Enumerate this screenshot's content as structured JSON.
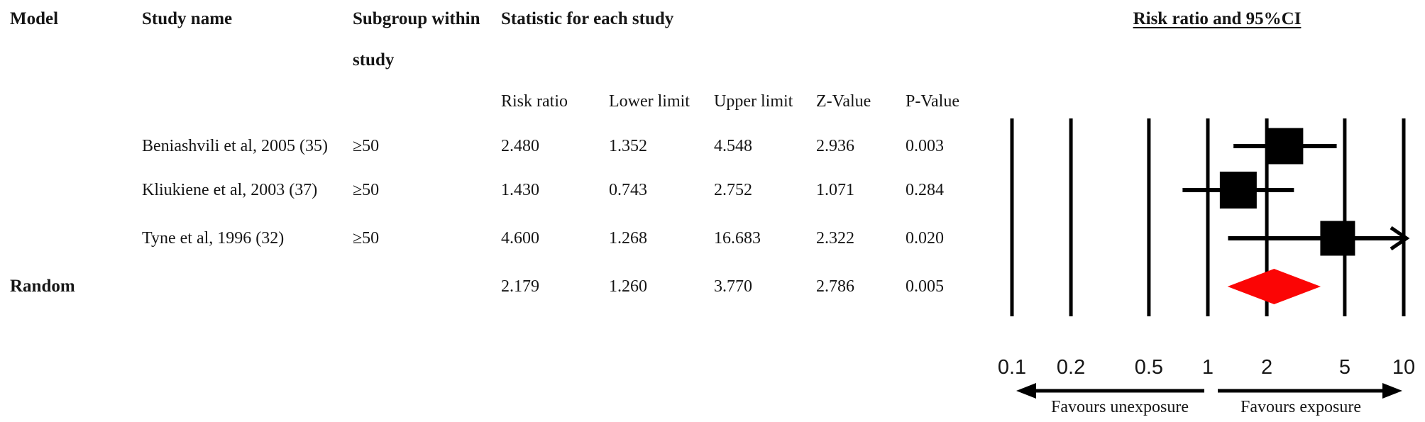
{
  "table": {
    "headers": {
      "model": "Model",
      "study_name": "Study name",
      "subgroup_line1": "Subgroup within",
      "subgroup_line2": "study",
      "statistic": "Statistic for each study",
      "risk_ratio": "Risk ratio",
      "lower_limit": "Lower limit",
      "upper_limit": "Upper limit",
      "z_value": "Z-Value",
      "p_value": "P-Value"
    },
    "rows": [
      {
        "study": "Beniashvili et al, 2005 (35)",
        "subgroup": "≥50",
        "risk_ratio": "2.480",
        "lower_limit": "1.352",
        "upper_limit": "4.548",
        "z_value": "2.936",
        "p_value": "0.003"
      },
      {
        "study": "Kliukiene et al, 2003 (37)",
        "subgroup": "≥50",
        "risk_ratio": "1.430",
        "lower_limit": "0.743",
        "upper_limit": "2.752",
        "z_value": "1.071",
        "p_value": "0.284"
      },
      {
        "study": "Tyne et al, 1996 (32)",
        "subgroup": "≥50",
        "risk_ratio": "4.600",
        "lower_limit": "1.268",
        "upper_limit": "16.683",
        "z_value": "2.322",
        "p_value": "0.020"
      }
    ],
    "summary_row": {
      "model": "Random",
      "risk_ratio": "2.179",
      "lower_limit": "1.260",
      "upper_limit": "3.770",
      "z_value": "2.786",
      "p_value": "0.005"
    }
  },
  "chart_data": {
    "type": "forest",
    "title": "Risk ratio and 95%CI",
    "x_scale": "log",
    "x_range": [
      0.1,
      10
    ],
    "x_ticks": [
      0.1,
      0.2,
      0.5,
      1,
      2,
      5,
      10
    ],
    "x_tick_labels": [
      "0.1",
      "0.2",
      "0.5",
      "1",
      "2",
      "5",
      "10"
    ],
    "grid": true,
    "studies": [
      {
        "name": "Beniashvili et al, 2005 (35)",
        "subgroup": "≥50",
        "risk_ratio": 2.48,
        "lower": 1.352,
        "upper": 4.548,
        "z": 2.936,
        "p": 0.003,
        "marker_size": 51,
        "upper_clipped": false
      },
      {
        "name": "Kliukiene et al, 2003 (37)",
        "subgroup": "≥50",
        "risk_ratio": 1.43,
        "lower": 0.743,
        "upper": 2.752,
        "z": 1.071,
        "p": 0.284,
        "marker_size": 52,
        "upper_clipped": false
      },
      {
        "name": "Tyne et al, 1996 (32)",
        "subgroup": "≥50",
        "risk_ratio": 4.6,
        "lower": 1.268,
        "upper": 16.683,
        "z": 2.322,
        "p": 0.02,
        "marker_size": 49,
        "upper_clipped": true
      }
    ],
    "summary": {
      "model": "Random",
      "risk_ratio": 2.179,
      "lower": 1.26,
      "upper": 3.77,
      "z": 2.786,
      "p": 0.005
    },
    "footer_left": "Favours unexposure",
    "footer_right": "Favours exposure",
    "colors": {
      "marker": "#000000",
      "line": "#000000",
      "summary_diamond": "#fb0505",
      "text": "#161616"
    }
  }
}
